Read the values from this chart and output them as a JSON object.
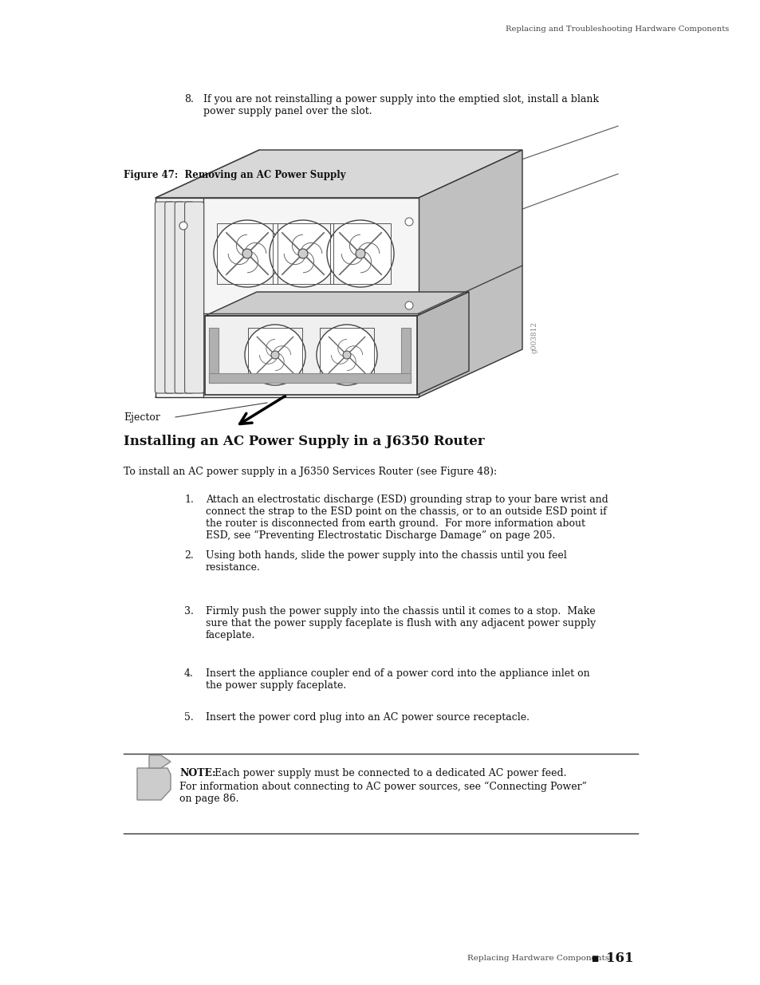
{
  "bg_color": "#ffffff",
  "header_text": "Replacing and Troubleshooting Hardware Components",
  "step8_num": "8.",
  "step8_text": "If you are not reinstalling a power supply into the emptied slot, install a blank\npower supply panel over the slot.",
  "fig_label": "Figure 47:  Removing an AC Power Supply",
  "section_title": "Installing an AC Power Supply in a J6350 Router",
  "intro_text": "To install an AC power supply in a J6350 Services Router (see Figure 48):",
  "steps": [
    {
      "num": "1.",
      "text": "Attach an electrostatic discharge (ESD) grounding strap to your bare wrist and\nconnect the strap to the ESD point on the chassis, or to an outside ESD point if\nthe router is disconnected from earth ground.  For more information about\nESD, see “Preventing Electrostatic Discharge Damage” on page 205."
    },
    {
      "num": "2.",
      "text": "Using both hands, slide the power supply into the chassis until you feel\nresistance."
    },
    {
      "num": "3.",
      "text": "Firmly push the power supply into the chassis until it comes to a stop.  Make\nsure that the power supply faceplate is flush with any adjacent power supply\nfaceplate."
    },
    {
      "num": "4.",
      "text": "Insert the appliance coupler end of a power cord into the appliance inlet on\nthe power supply faceplate."
    },
    {
      "num": "5.",
      "text": "Insert the power cord plug into an AC power source receptacle."
    }
  ],
  "note_bold": "NOTE:",
  "note_text_line1": " Each power supply must be connected to a dedicated AC power feed.",
  "note_text_rest": "For information about connecting to AC power sources, see “Connecting Power”\non page 86.",
  "footer_text": "Replacing Hardware Components",
  "footer_page": "161",
  "ejector_label": "Ejector",
  "image_watermark": "g003812"
}
